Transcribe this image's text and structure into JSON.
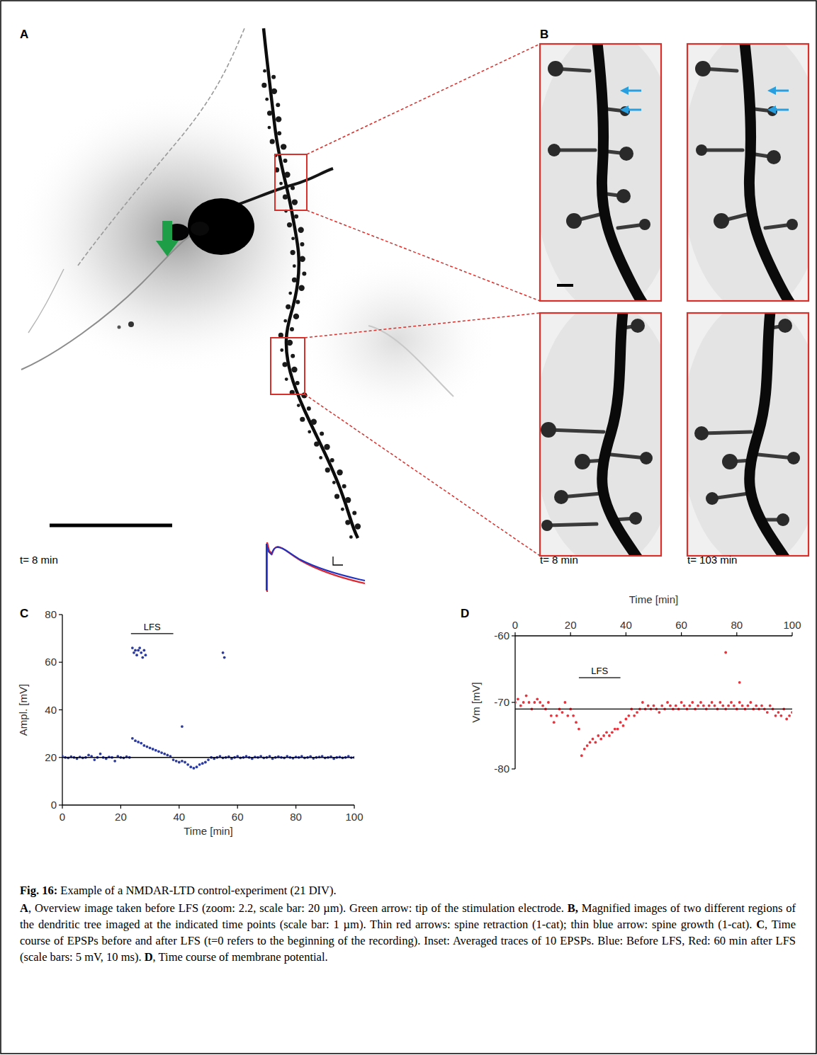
{
  "panels": {
    "A": {
      "letter": "A",
      "time_label": "t= 8 min"
    },
    "B": {
      "letter": "B",
      "time_labels": [
        "t= 8 min",
        "t= 103 min"
      ]
    },
    "C": {
      "letter": "C"
    },
    "D": {
      "letter": "D"
    }
  },
  "chart_data": [
    {
      "type": "scatter",
      "x_label": "Time [min]",
      "y_label": "Ampl. [mV]",
      "xlim": [
        0,
        100
      ],
      "ylim": [
        0,
        80
      ],
      "xticks": [
        0,
        20,
        40,
        60,
        80,
        100
      ],
      "yticks": [
        0,
        20,
        40,
        60,
        80
      ],
      "baseline": 20,
      "annotations": [
        {
          "text": "LFS",
          "x": [
            23.5,
            38
          ],
          "y": 72
        }
      ],
      "series": [
        {
          "color": "#2b3a9e",
          "x": [
            0,
            1,
            2,
            3,
            4,
            5,
            6,
            7,
            8,
            9,
            10,
            11,
            12,
            13,
            14,
            15,
            16,
            17,
            18,
            19,
            20,
            21,
            22,
            23,
            24,
            25,
            26,
            27,
            28,
            29,
            30,
            31,
            32,
            33,
            34,
            35,
            36,
            37,
            38,
            39,
            40,
            41,
            42,
            43,
            44,
            45,
            46,
            47,
            48,
            49,
            50,
            51,
            52,
            53,
            54,
            55,
            56,
            57,
            58,
            59,
            60,
            61,
            62,
            63,
            64,
            65,
            66,
            67,
            68,
            69,
            70,
            71,
            72,
            73,
            74,
            75,
            76,
            77,
            78,
            79,
            80,
            81,
            82,
            83,
            84,
            85,
            86,
            87,
            88,
            89,
            90,
            91,
            92,
            93,
            94,
            95,
            96,
            97,
            98,
            99,
            100
          ],
          "values": [
            20.5,
            20,
            19.8,
            20.3,
            20,
            19.5,
            20.2,
            19.8,
            20,
            21,
            20.5,
            19,
            20,
            21.5,
            20,
            19.5,
            20.2,
            20,
            18.5,
            20.5,
            20,
            19.8,
            20.3,
            20,
            28,
            27,
            26.5,
            26,
            25,
            24.5,
            24,
            23.5,
            23,
            22.5,
            22,
            21.5,
            21,
            20.5,
            19,
            18.5,
            18,
            18.5,
            18,
            17,
            16,
            15.5,
            16,
            17,
            17.5,
            18,
            19,
            20,
            19.5,
            20,
            20.5,
            19.8,
            20,
            20.3,
            19.5,
            20,
            20.5,
            19.8,
            20,
            20.5,
            20,
            19.5,
            20.2,
            20,
            20.5,
            19.8,
            20,
            20.5,
            19.5,
            20,
            20.3,
            20,
            19.8,
            20.5,
            20,
            19.7,
            20.2,
            20,
            20.5,
            19.8,
            20,
            20.4,
            19.6,
            20,
            20.2,
            20.5,
            19.8,
            20,
            20.3,
            19.5,
            20,
            20.2,
            19.8,
            20,
            20.5,
            19.9,
            20
          ]
        },
        {
          "color": "#2b3a9e",
          "x": [
            24,
            24.5,
            25,
            25.5,
            26,
            26.5,
            27,
            27.5,
            28,
            28.5,
            55,
            55.5,
            41
          ],
          "values": [
            66,
            64,
            65,
            63,
            65,
            66,
            64,
            62,
            65,
            63,
            64,
            62,
            33
          ]
        }
      ]
    },
    {
      "type": "scatter",
      "x_label": "Time [min]",
      "y_label": "Vm [mV]",
      "xlim": [
        0,
        100
      ],
      "ylim": [
        -80,
        -60
      ],
      "xticks": [
        0,
        20,
        40,
        60,
        80,
        100
      ],
      "yticks": [
        -80,
        -70,
        -60
      ],
      "baseline": -71,
      "annotations": [
        {
          "text": "LFS",
          "x": [
            23,
            38
          ],
          "y": -66.3
        }
      ],
      "series": [
        {
          "color": "#e8323c",
          "x": [
            0,
            1,
            2,
            3,
            4,
            5,
            6,
            7,
            8,
            9,
            10,
            11,
            12,
            13,
            14,
            15,
            16,
            17,
            18,
            19,
            20,
            21,
            22,
            23,
            24,
            25,
            26,
            27,
            28,
            29,
            30,
            31,
            32,
            33,
            34,
            35,
            36,
            37,
            38,
            39,
            40,
            41,
            42,
            43,
            44,
            45,
            46,
            47,
            48,
            49,
            50,
            51,
            52,
            53,
            54,
            55,
            56,
            57,
            58,
            59,
            60,
            61,
            62,
            63,
            64,
            65,
            66,
            67,
            68,
            69,
            70,
            71,
            72,
            73,
            74,
            75,
            76,
            77,
            78,
            79,
            80,
            81,
            82,
            83,
            84,
            85,
            86,
            87,
            88,
            89,
            90,
            91,
            92,
            93,
            94,
            95,
            96,
            97,
            98,
            99,
            100
          ],
          "values": [
            -70,
            -69.5,
            -70.5,
            -70,
            -69,
            -70,
            -71,
            -70,
            -69.5,
            -70,
            -70.5,
            -71,
            -70,
            -72,
            -73,
            -72,
            -71,
            -71.5,
            -70,
            -72,
            -71,
            -72,
            -73,
            -74,
            -78,
            -77,
            -76.5,
            -76,
            -75.5,
            -76,
            -75,
            -75.5,
            -75,
            -74.5,
            -75,
            -74.5,
            -74,
            -74,
            -73,
            -73.5,
            -72.5,
            -72,
            -71,
            -72,
            -71.5,
            -71,
            -70,
            -71,
            -70.5,
            -71,
            -70.5,
            -71,
            -71.5,
            -70.5,
            -71,
            -70,
            -70.5,
            -71,
            -70.5,
            -71,
            -70,
            -70.5,
            -71,
            -70.5,
            -70,
            -71,
            -70.5,
            -70,
            -70.5,
            -71,
            -70.5,
            -70,
            -70.5,
            -71,
            -70,
            -70.5,
            -71,
            -70.5,
            -70,
            -70.5,
            -71,
            -70,
            -70.5,
            -71,
            -70.5,
            -70,
            -71,
            -70.5,
            -71,
            -70.5,
            -71,
            -71.5,
            -70.5,
            -71,
            -72,
            -71.5,
            -72,
            -71,
            -72.5,
            -72,
            -71.5
          ]
        },
        {
          "color": "#e8323c",
          "x": [
            76,
            81
          ],
          "values": [
            -62.5,
            -67
          ]
        }
      ]
    }
  ],
  "caption": {
    "paragraphs": [
      {
        "runs": [
          {
            "text": "Fig. 16:",
            "bold": true
          },
          {
            "text": " Example of a NMDAR-LTD control-experiment (21 DIV).",
            "bold": false
          }
        ]
      },
      {
        "runs": [
          {
            "text": "A",
            "bold": true
          },
          {
            "text": ", Overview image taken before LFS (zoom: 2.2, scale bar: 20 µm). Green arrow: tip of the stimulation electrode. ",
            "bold": false
          },
          {
            "text": "B,",
            "bold": true
          },
          {
            "text": " Magnified images of two different regions of the dendritic tree imaged at the indicated time points (scale bar: 1 µm). Thin red arrows: spine retraction (1-cat); thin blue arrow: spine growth (1-cat). ",
            "bold": false
          },
          {
            "text": "C",
            "bold": true
          },
          {
            "text": ", Time course of EPSPs before and after LFS (t=0 refers to the beginning of the recording). Inset: Averaged traces of 10 EPSPs. Blue: Before LFS, Red: 60 min after LFS (scale bars: 5 mV, 10 ms). ",
            "bold": false
          },
          {
            "text": "D",
            "bold": true
          },
          {
            "text": ", Time course of membrane potential.",
            "bold": false
          }
        ]
      }
    ]
  }
}
